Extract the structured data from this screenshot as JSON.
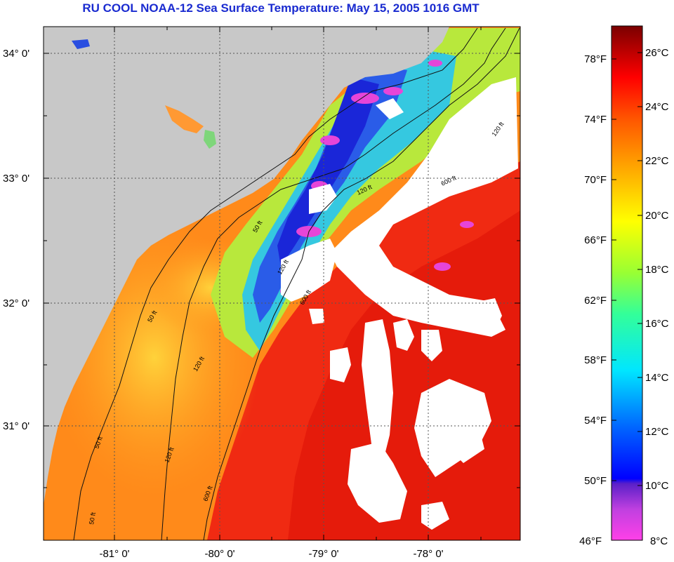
{
  "title": "RU COOL  NOAA-12  Sea Surface Temperature:  May 15, 2005 1016 GMT",
  "colors": {
    "land": "#c8c8c8",
    "cloud": "#ffffff",
    "grid": "#555555",
    "contour": "#111111",
    "title": "#1a2bd0"
  },
  "latitude_ticks": [
    "34° 0'",
    "33° 0'",
    "32° 0'",
    "31° 0'"
  ],
  "longitude_ticks": [
    "-81° 0'",
    "-80° 0'",
    "-79° 0'",
    "-78° 0'"
  ],
  "isobath_labels": [
    "50 ft",
    "120 ft",
    "600 ft",
    "120 ft",
    "50 ft",
    "120 ft",
    "600 ft",
    "120 ft",
    "50 ft",
    "120 ft",
    "600 ft",
    "50 ft"
  ],
  "colorbar": {
    "fahrenheit": [
      "78°F",
      "74°F",
      "70°F",
      "66°F",
      "62°F",
      "58°F",
      "54°F",
      "50°F",
      "46°F"
    ],
    "celsius": [
      "26°C",
      "24°C",
      "22°C",
      "20°C",
      "18°C",
      "16°C",
      "14°C",
      "12°C",
      "10°C",
      "8°C"
    ]
  }
}
